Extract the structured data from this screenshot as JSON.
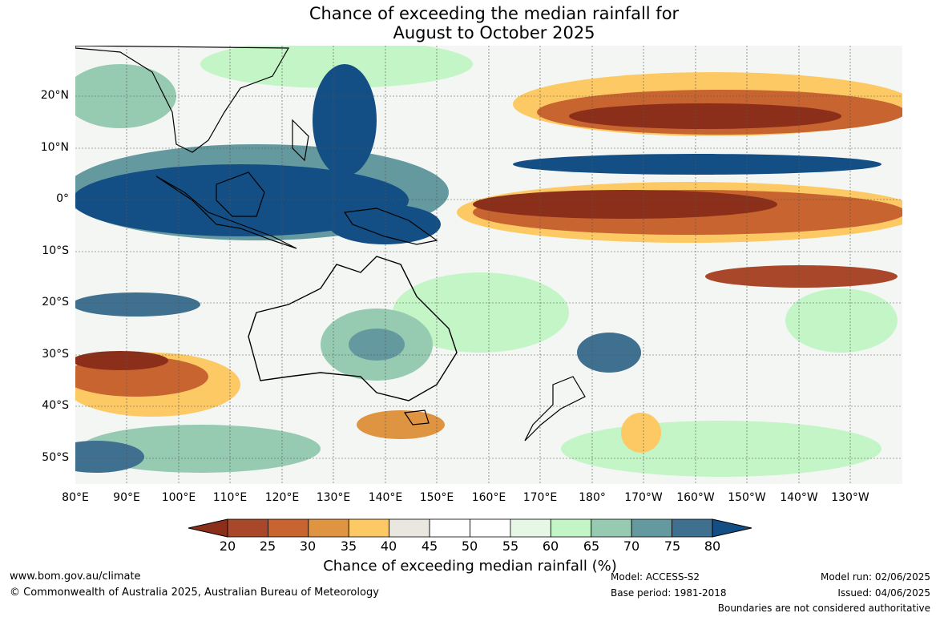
{
  "title_line1": "Chance of exceeding the median rainfall for",
  "title_line2": "August to October 2025",
  "lat_labels": [
    "20°N",
    "10°N",
    "0°",
    "10°S",
    "20°S",
    "30°S",
    "40°S",
    "50°S"
  ],
  "lon_labels": [
    "80°E",
    "90°E",
    "100°E",
    "110°E",
    "120°E",
    "130°E",
    "140°E",
    "150°E",
    "160°E",
    "170°E",
    "180°",
    "170°W",
    "160°W",
    "150°W",
    "140°W",
    "130°W"
  ],
  "colorbar": {
    "labels": [
      "20",
      "25",
      "30",
      "35",
      "40",
      "45",
      "50",
      "55",
      "60",
      "65",
      "70",
      "75",
      "80"
    ],
    "colors": [
      "#8b2e1a",
      "#a9472a",
      "#c8642f",
      "#df9442",
      "#fdc965",
      "#eae6e0",
      "#ffffff",
      "#ffffff",
      "#e6f7e6",
      "#c3f5c7",
      "#96cbb1",
      "#64999f",
      "#3f7090",
      "#134e85"
    ],
    "title": "Chance of exceeding median rainfall (%)"
  },
  "footer": {
    "url": "www.bom.gov.au/climate",
    "copyright": "© Commonwealth of Australia 2025, Australian Bureau of Meteorology",
    "model": "Model: ACCESS-S2",
    "base_period": "Base period: 1981-2018",
    "model_run": "Model run: 02/06/2025",
    "issued": "Issued: 04/06/2025",
    "disclaimer": "Boundaries are not considered authoritative"
  }
}
